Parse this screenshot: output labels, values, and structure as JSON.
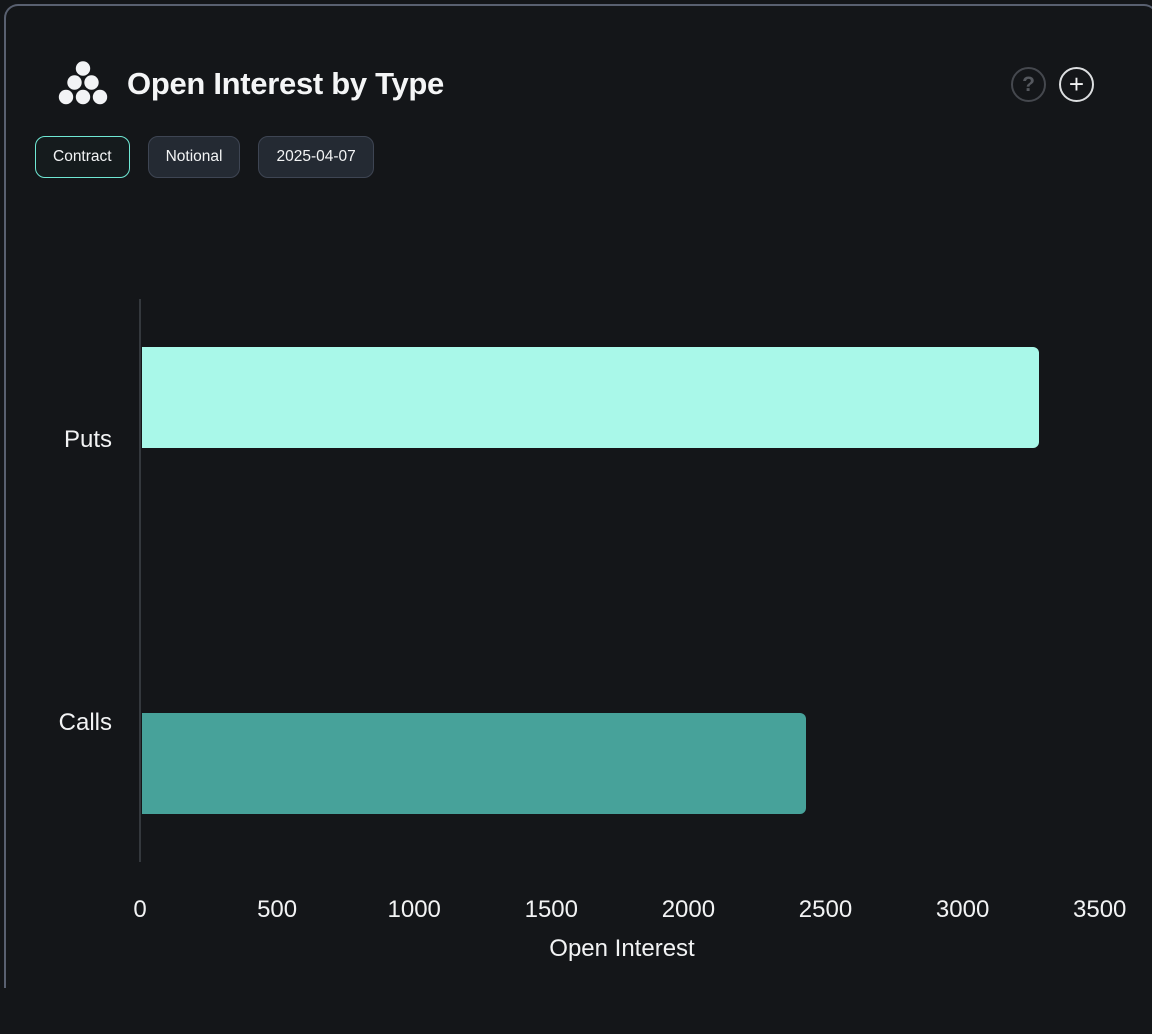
{
  "header": {
    "title": "Open Interest by Type",
    "logo_icon": "dot-pyramid-cluster-icon",
    "help_glyph": "?",
    "add_glyph": "+"
  },
  "toolbar": {
    "buttons": [
      {
        "label": "Contract",
        "active": true
      },
      {
        "label": "Notional",
        "active": false
      },
      {
        "label": "2025-04-07",
        "active": false
      }
    ]
  },
  "chart_data": {
    "type": "bar",
    "orientation": "horizontal",
    "title": "Open Interest by Type",
    "categories": [
      "Puts",
      "Calls"
    ],
    "values": [
      3270,
      2420
    ],
    "bar_colors": [
      "#A9F8E9",
      "#47A29A"
    ],
    "xlabel": "Open Interest",
    "ylabel": "",
    "xlim": [
      0,
      3500
    ],
    "xticks": [
      0,
      500,
      1000,
      1500,
      2000,
      2500,
      3000,
      3500
    ],
    "grid": false,
    "legend": "none"
  },
  "colors": {
    "background": "#141619",
    "frame_border": "#596070",
    "accent_mint": "#A9F8E9",
    "accent_teal": "#47A29A",
    "chip_active_border": "#6FE8D4",
    "text": "#F2F3F4"
  }
}
